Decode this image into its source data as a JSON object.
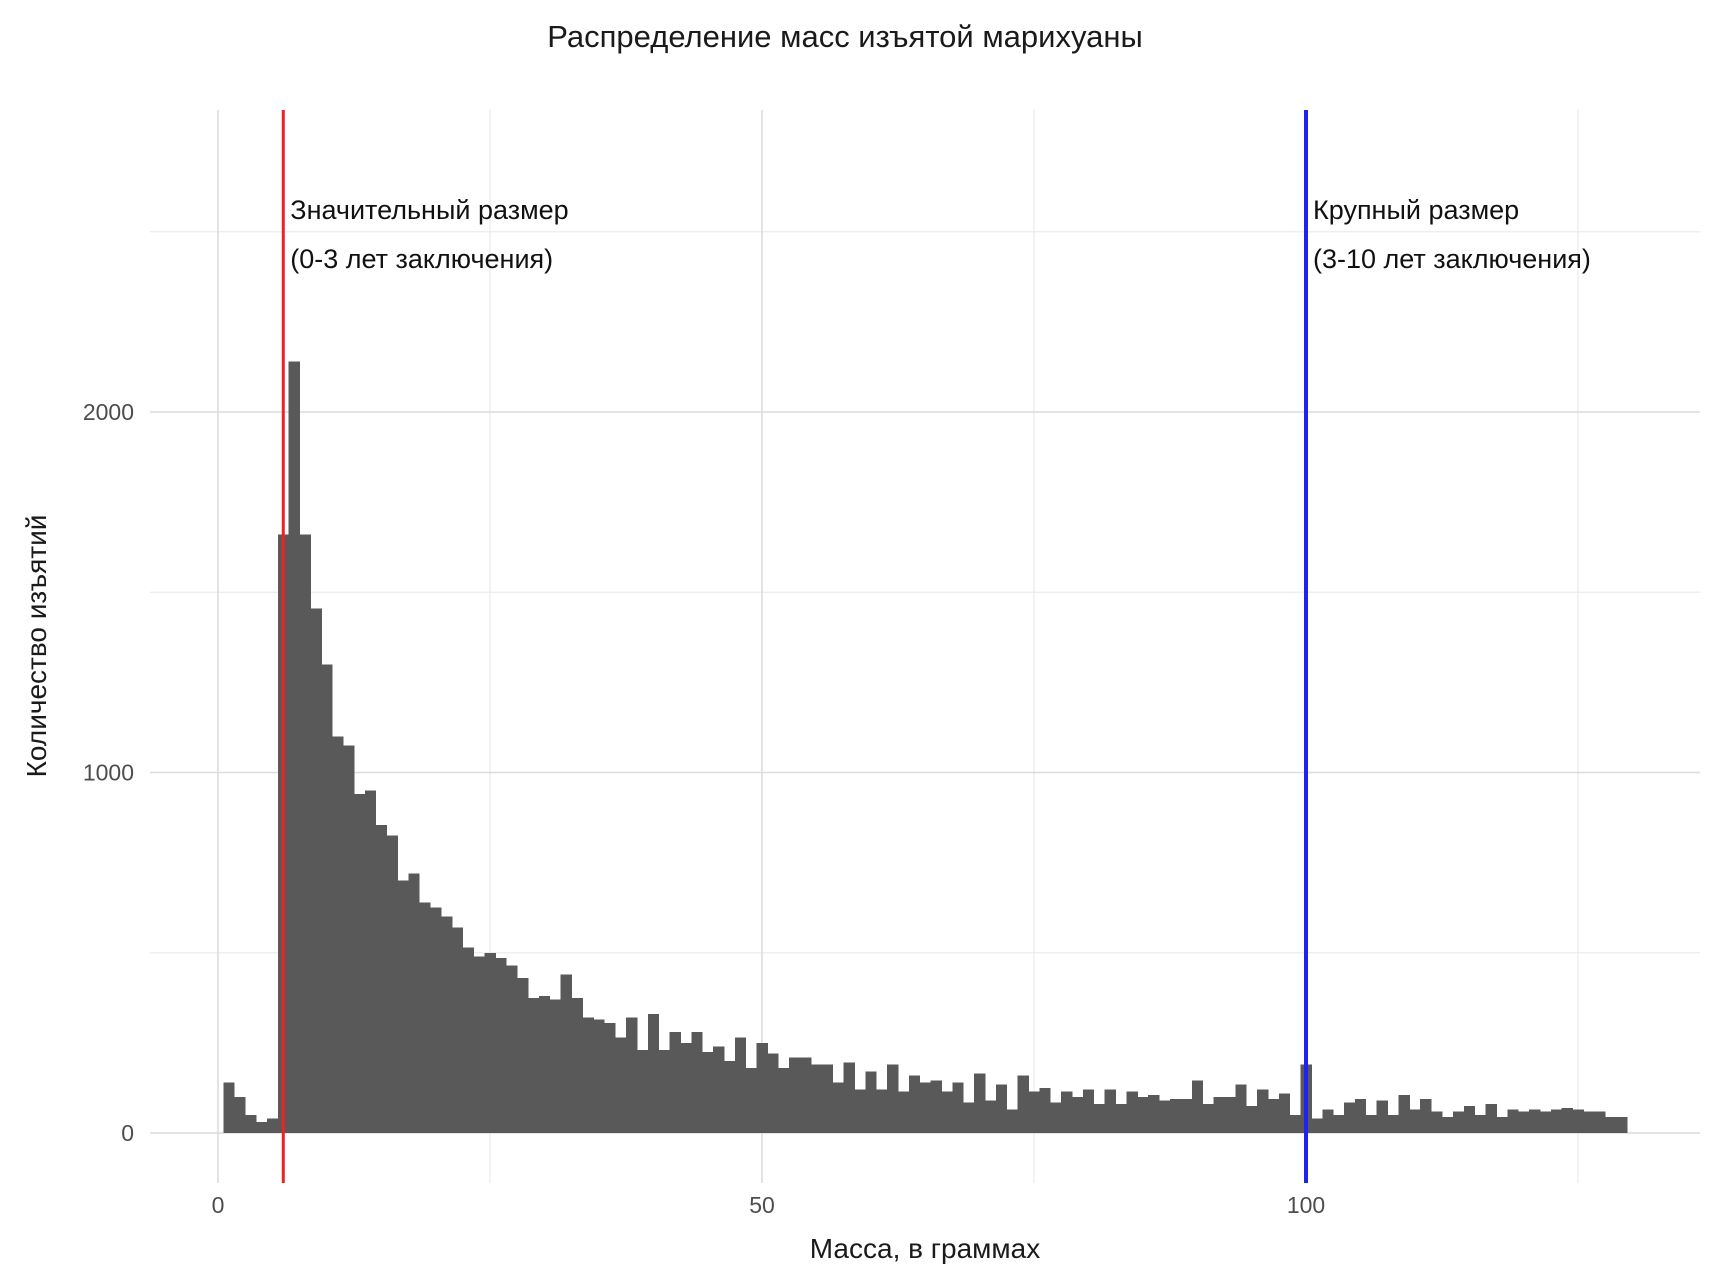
{
  "chart_data": {
    "type": "bar",
    "subtype": "histogram",
    "title": "Распределение масс изъятой марихуаны",
    "xlabel": "Масса, в граммах",
    "ylabel": "Количество изъятий",
    "grid": true,
    "legend_position": "none",
    "bin_width_grams": 1,
    "first_bin_center": 1,
    "bin_centers_start": 0.5,
    "bar_color": "#595959",
    "grid_major_color": "#dcdcdc",
    "grid_minor_color": "#ebebeb",
    "x_ticks": [
      0,
      50,
      100
    ],
    "y_ticks": [
      0,
      1000,
      2000
    ],
    "x_minor_gridlines": [
      25,
      75,
      125
    ],
    "y_minor_gridlines": [
      500,
      1500,
      2500
    ],
    "xlim": [
      -6.3,
      136.5
    ],
    "ylim": [
      -140,
      2840
    ],
    "counts": [
      140,
      100,
      50,
      30,
      40,
      1660,
      2140,
      1660,
      1455,
      1300,
      1100,
      1075,
      940,
      950,
      855,
      825,
      700,
      720,
      640,
      625,
      600,
      570,
      515,
      490,
      500,
      485,
      465,
      430,
      375,
      380,
      370,
      440,
      375,
      320,
      315,
      305,
      265,
      320,
      230,
      330,
      230,
      280,
      250,
      280,
      225,
      240,
      200,
      265,
      180,
      250,
      220,
      180,
      210,
      210,
      190,
      190,
      140,
      195,
      120,
      170,
      120,
      190,
      115,
      160,
      140,
      145,
      115,
      140,
      85,
      165,
      90,
      135,
      65,
      160,
      115,
      125,
      85,
      115,
      100,
      120,
      80,
      120,
      80,
      115,
      100,
      105,
      90,
      95,
      95,
      145,
      80,
      100,
      100,
      135,
      75,
      120,
      95,
      110,
      50,
      190,
      40,
      65,
      50,
      85,
      95,
      50,
      90,
      50,
      105,
      65,
      95,
      60,
      45,
      60,
      75,
      50,
      80,
      45,
      65,
      60,
      65,
      60,
      65,
      70,
      65,
      60,
      60,
      45,
      45
    ],
    "annotations": [
      {
        "id": "significant",
        "x_grams": 6,
        "line_color": "#ee2222",
        "line_width": 3,
        "text_line1": "Значительный размер",
        "text_line2": "(0-3 лет заключения)"
      },
      {
        "id": "large",
        "x_grams": 100,
        "line_color": "#2222ee",
        "line_width": 4,
        "text_line1": "Крупный размер",
        "text_line2": "(3-10 лет заключения)"
      }
    ]
  }
}
